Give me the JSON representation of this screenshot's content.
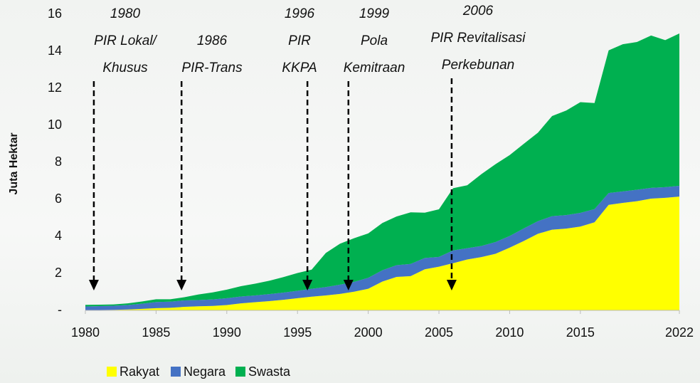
{
  "chart_data": {
    "type": "stacked_area",
    "y_label": "Juta Hektar",
    "x": [
      1980,
      1981,
      1982,
      1983,
      1984,
      1985,
      1986,
      1987,
      1988,
      1989,
      1990,
      1991,
      1992,
      1993,
      1994,
      1995,
      1996,
      1997,
      1998,
      1999,
      2000,
      2001,
      2002,
      2003,
      2004,
      2005,
      2006,
      2007,
      2008,
      2009,
      2010,
      2011,
      2012,
      2013,
      2014,
      2015,
      2016,
      2017,
      2018,
      2019,
      2020,
      2021,
      2022
    ],
    "series": [
      {
        "name": "Rakyat",
        "color": "#ffff00",
        "values": [
          0.01,
          0.02,
          0.03,
          0.05,
          0.08,
          0.12,
          0.14,
          0.19,
          0.22,
          0.24,
          0.29,
          0.38,
          0.44,
          0.5,
          0.57,
          0.66,
          0.74,
          0.81,
          0.89,
          1.01,
          1.17,
          1.56,
          1.81,
          1.85,
          2.22,
          2.36,
          2.55,
          2.75,
          2.88,
          3.06,
          3.39,
          3.75,
          4.14,
          4.36,
          4.42,
          4.53,
          4.76,
          5.7,
          5.81,
          5.9,
          6.04,
          6.08,
          6.15
        ]
      },
      {
        "name": "Negara",
        "color": "#4472c4",
        "values": [
          0.2,
          0.21,
          0.22,
          0.24,
          0.28,
          0.33,
          0.33,
          0.35,
          0.34,
          0.35,
          0.37,
          0.37,
          0.37,
          0.38,
          0.39,
          0.4,
          0.43,
          0.45,
          0.5,
          0.53,
          0.59,
          0.61,
          0.63,
          0.66,
          0.61,
          0.53,
          0.69,
          0.61,
          0.6,
          0.63,
          0.63,
          0.68,
          0.68,
          0.73,
          0.73,
          0.74,
          0.71,
          0.64,
          0.62,
          0.62,
          0.58,
          0.58,
          0.58
        ]
      },
      {
        "name": "Swasta",
        "color": "#00b050",
        "values": [
          0.09,
          0.08,
          0.07,
          0.09,
          0.12,
          0.15,
          0.13,
          0.17,
          0.3,
          0.38,
          0.46,
          0.56,
          0.63,
          0.72,
          0.84,
          0.96,
          1.03,
          1.84,
          2.21,
          2.36,
          2.4,
          2.55,
          2.63,
          2.79,
          2.45,
          2.57,
          3.36,
          3.4,
          3.88,
          4.21,
          4.37,
          4.57,
          4.78,
          5.41,
          5.65,
          5.98,
          5.73,
          7.71,
          7.95,
          7.98,
          8.23,
          7.94,
          8.23
        ]
      }
    ],
    "xlim": [
      1980,
      2022
    ],
    "xticks": [
      1980,
      1985,
      1990,
      1995,
      2000,
      2005,
      2010,
      2015,
      2022
    ],
    "ylim": [
      0,
      16
    ],
    "yticks": [
      {
        "value": 0,
        "label": "-"
      },
      2,
      4,
      6,
      8,
      10,
      12,
      14,
      16
    ],
    "legend": "bottom",
    "annotations": [
      {
        "x": 1980.6,
        "lines": [
          "1980",
          "PIR Lokal/",
          "Khusus"
        ]
      },
      {
        "x": 1986.8,
        "lines": [
          "1986",
          "PIR-Trans"
        ]
      },
      {
        "x": 1995.7,
        "lines": [
          "1996",
          "PIR",
          "KKPA"
        ]
      },
      {
        "x": 1998.6,
        "lines": [
          "1999",
          "Pola",
          "Kemitraan"
        ]
      },
      {
        "x": 2005.9,
        "lines": [
          "2006",
          "PIR Revitalisasi",
          "Perkebunan"
        ]
      }
    ]
  }
}
